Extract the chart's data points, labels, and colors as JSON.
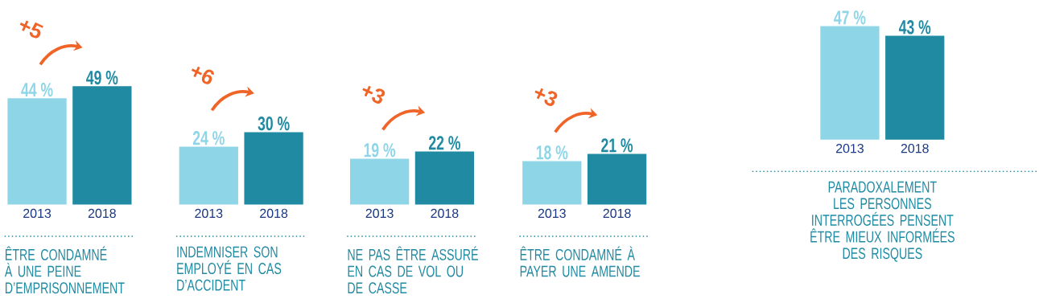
{
  "chart_data": [
    {
      "type": "bar",
      "categories": [
        "2013",
        "2018"
      ],
      "values": [
        44,
        49
      ],
      "colors": [
        "#8fd5e8",
        "#1f8aa2"
      ],
      "value_labels": [
        "44 %",
        "49 %"
      ],
      "annotations": [
        "+5"
      ],
      "xlabel": "ÊTRE CONDAMNÉ À UNE PEINE D’EMPRISONNEMENT"
    },
    {
      "type": "bar",
      "categories": [
        "2013",
        "2018"
      ],
      "values": [
        24,
        30
      ],
      "colors": [
        "#8fd5e8",
        "#1f8aa2"
      ],
      "value_labels": [
        "24 %",
        "30 %"
      ],
      "annotations": [
        "+6"
      ],
      "xlabel": "INDEMNISER SON EMPLOYÉ EN CAS D’ACCIDENT"
    },
    {
      "type": "bar",
      "categories": [
        "2013",
        "2018"
      ],
      "values": [
        19,
        22
      ],
      "colors": [
        "#8fd5e8",
        "#1f8aa2"
      ],
      "value_labels": [
        "19 %",
        "22 %"
      ],
      "annotations": [
        "+3"
      ],
      "xlabel": "NE PAS ÊTRE ASSURÉ EN CAS DE VOL OU DE CASSE"
    },
    {
      "type": "bar",
      "categories": [
        "2013",
        "2018"
      ],
      "values": [
        18,
        21
      ],
      "colors": [
        "#8fd5e8",
        "#1f8aa2"
      ],
      "value_labels": [
        "18 %",
        "21 %"
      ],
      "annotations": [
        "+3"
      ],
      "xlabel": "ÊTRE CONDAMNÉ À PAYER UNE AMENDE"
    },
    {
      "type": "bar",
      "categories": [
        "2013",
        "2018"
      ],
      "values": [
        47,
        43
      ],
      "colors": [
        "#8fd5e8",
        "#1f8aa2"
      ],
      "value_labels": [
        "47 %",
        "43 %"
      ],
      "xlabel": "PARADOXALEMENT LES PERSONNES INTERROGÉES PENSENT ÊTRE MIEUX INFORMÉES DES RISQUES"
    }
  ]
}
